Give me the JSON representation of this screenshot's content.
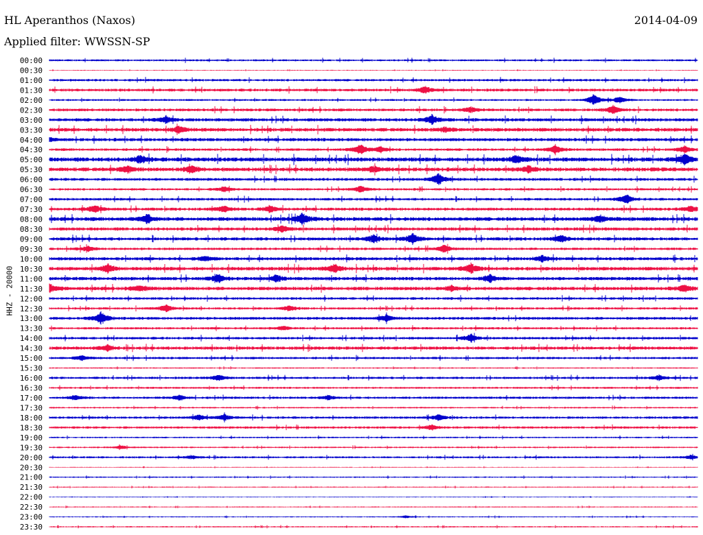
{
  "header": {
    "station": "HL Aperanthos (Naxos)",
    "date": "2014-04-09",
    "filter": "Applied filter: WWSSN-SP"
  },
  "chart_data": {
    "type": "line",
    "ylabel": "HHZ - 20000",
    "rows": [
      "00:00",
      "00:30",
      "01:00",
      "01:30",
      "02:00",
      "02:30",
      "03:00",
      "03:30",
      "04:00",
      "04:30",
      "05:00",
      "05:30",
      "06:00",
      "06:30",
      "07:00",
      "07:30",
      "08:00",
      "08:30",
      "09:00",
      "09:30",
      "10:00",
      "10:30",
      "11:00",
      "11:30",
      "12:00",
      "12:30",
      "13:00",
      "13:30",
      "14:00",
      "14:30",
      "15:00",
      "15:30",
      "16:00",
      "16:30",
      "17:00",
      "17:30",
      "18:00",
      "18:30",
      "19:00",
      "19:30",
      "20:00",
      "20:30",
      "21:00",
      "21:30",
      "22:00",
      "22:30",
      "23:00",
      "23:30"
    ],
    "colors": [
      "#0000cc",
      "#ee1144"
    ],
    "noise": [
      1.5,
      0.6,
      1.8,
      2.2,
      1.5,
      2.2,
      2.5,
      2.8,
      2.5,
      2.0,
      3.2,
      3.0,
      2.2,
      1.8,
      2.0,
      2.3,
      3.0,
      2.5,
      2.5,
      2.0,
      2.5,
      2.8,
      2.6,
      2.8,
      2.0,
      1.8,
      2.2,
      1.8,
      2.0,
      2.5,
      1.8,
      1.0,
      1.8,
      1.5,
      1.8,
      1.2,
      1.8,
      1.8,
      1.2,
      1.2,
      1.5,
      0.6,
      1.0,
      0.8,
      0.6,
      0.8,
      0.8,
      1.0
    ],
    "events": [
      {
        "row": 3,
        "time": 0.58,
        "amp": 6
      },
      {
        "row": 4,
        "time": 0.84,
        "amp": 9
      },
      {
        "row": 4,
        "time": 0.88,
        "amp": 5
      },
      {
        "row": 5,
        "time": 0.65,
        "amp": 4
      },
      {
        "row": 5,
        "time": 0.87,
        "amp": 6
      },
      {
        "row": 6,
        "time": 0.18,
        "amp": 5
      },
      {
        "row": 6,
        "time": 0.59,
        "amp": 7
      },
      {
        "row": 7,
        "time": 0.2,
        "amp": 5
      },
      {
        "row": 7,
        "time": 0.61,
        "amp": 3
      },
      {
        "row": 8,
        "time": 0.0,
        "amp": 3
      },
      {
        "row": 9,
        "time": 0.48,
        "amp": 8
      },
      {
        "row": 9,
        "time": 0.51,
        "amp": 5
      },
      {
        "row": 9,
        "time": 0.78,
        "amp": 6
      },
      {
        "row": 9,
        "time": 0.98,
        "amp": 5
      },
      {
        "row": 10,
        "time": 0.14,
        "amp": 6
      },
      {
        "row": 10,
        "time": 0.72,
        "amp": 6
      },
      {
        "row": 10,
        "time": 0.98,
        "amp": 8
      },
      {
        "row": 11,
        "time": 0.12,
        "amp": 5
      },
      {
        "row": 11,
        "time": 0.22,
        "amp": 5
      },
      {
        "row": 11,
        "time": 0.5,
        "amp": 4
      },
      {
        "row": 11,
        "time": 0.74,
        "amp": 5
      },
      {
        "row": 12,
        "time": 0.6,
        "amp": 9
      },
      {
        "row": 13,
        "time": 0.48,
        "amp": 5
      },
      {
        "row": 13,
        "time": 0.27,
        "amp": 4
      },
      {
        "row": 14,
        "time": 0.89,
        "amp": 7
      },
      {
        "row": 15,
        "time": 0.07,
        "amp": 6
      },
      {
        "row": 15,
        "time": 0.27,
        "amp": 5
      },
      {
        "row": 15,
        "time": 0.34,
        "amp": 5
      },
      {
        "row": 15,
        "time": 0.99,
        "amp": 5
      },
      {
        "row": 16,
        "time": 0.15,
        "amp": 7
      },
      {
        "row": 16,
        "time": 0.39,
        "amp": 8
      },
      {
        "row": 16,
        "time": 0.85,
        "amp": 5
      },
      {
        "row": 17,
        "time": 0.36,
        "amp": 5
      },
      {
        "row": 18,
        "time": 0.5,
        "amp": 6
      },
      {
        "row": 18,
        "time": 0.56,
        "amp": 8
      },
      {
        "row": 18,
        "time": 0.79,
        "amp": 5
      },
      {
        "row": 19,
        "time": 0.06,
        "amp": 4
      },
      {
        "row": 19,
        "time": 0.61,
        "amp": 6
      },
      {
        "row": 20,
        "time": 0.24,
        "amp": 4
      },
      {
        "row": 20,
        "time": 0.76,
        "amp": 5
      },
      {
        "row": 21,
        "time": 0.09,
        "amp": 6
      },
      {
        "row": 21,
        "time": 0.44,
        "amp": 6
      },
      {
        "row": 21,
        "time": 0.65,
        "amp": 8
      },
      {
        "row": 22,
        "time": 0.26,
        "amp": 6
      },
      {
        "row": 22,
        "time": 0.35,
        "amp": 5
      },
      {
        "row": 22,
        "time": 0.68,
        "amp": 6
      },
      {
        "row": 23,
        "time": 0.0,
        "amp": 6
      },
      {
        "row": 23,
        "time": 0.14,
        "amp": 5
      },
      {
        "row": 23,
        "time": 0.62,
        "amp": 4
      },
      {
        "row": 23,
        "time": 0.98,
        "amp": 5
      },
      {
        "row": 25,
        "time": 0.18,
        "amp": 6
      },
      {
        "row": 25,
        "time": 0.37,
        "amp": 4
      },
      {
        "row": 26,
        "time": 0.08,
        "amp": 10
      },
      {
        "row": 26,
        "time": 0.52,
        "amp": 5
      },
      {
        "row": 27,
        "time": 0.36,
        "amp": 3
      },
      {
        "row": 28,
        "time": 0.65,
        "amp": 6
      },
      {
        "row": 29,
        "time": 0.09,
        "amp": 4
      },
      {
        "row": 30,
        "time": 0.05,
        "amp": 4
      },
      {
        "row": 32,
        "time": 0.26,
        "amp": 5
      },
      {
        "row": 32,
        "time": 0.94,
        "amp": 4
      },
      {
        "row": 34,
        "time": 0.04,
        "amp": 4
      },
      {
        "row": 34,
        "time": 0.2,
        "amp": 4
      },
      {
        "row": 34,
        "time": 0.43,
        "amp": 4
      },
      {
        "row": 36,
        "time": 0.23,
        "amp": 4
      },
      {
        "row": 36,
        "time": 0.27,
        "amp": 5
      },
      {
        "row": 36,
        "time": 0.6,
        "amp": 5
      },
      {
        "row": 37,
        "time": 0.59,
        "amp": 4
      },
      {
        "row": 39,
        "time": 0.11,
        "amp": 3
      },
      {
        "row": 40,
        "time": 0.22,
        "amp": 3
      },
      {
        "row": 40,
        "time": 0.99,
        "amp": 3
      },
      {
        "row": 46,
        "time": 0.55,
        "amp": 2
      }
    ]
  }
}
